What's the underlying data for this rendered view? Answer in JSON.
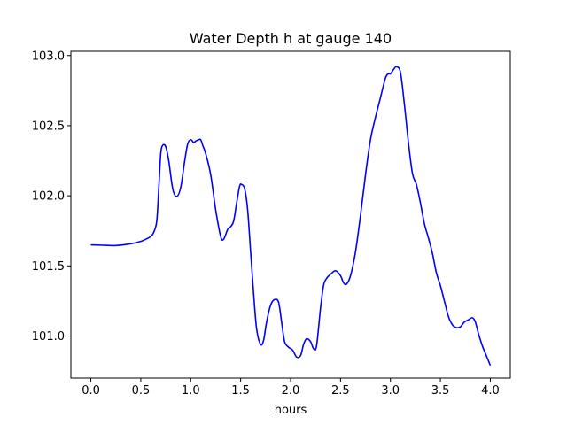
{
  "chart_data": {
    "type": "line",
    "title": "Water Depth h at gauge 140",
    "xlabel": "hours",
    "ylabel": "",
    "xlim": [
      -0.2,
      4.2
    ],
    "ylim": [
      100.7,
      103.03
    ],
    "xticks": [
      0.0,
      0.5,
      1.0,
      1.5,
      2.0,
      2.5,
      3.0,
      3.5,
      4.0
    ],
    "xtick_labels": [
      "0.0",
      "0.5",
      "1.0",
      "1.5",
      "2.0",
      "2.5",
      "3.0",
      "3.5",
      "4.0"
    ],
    "yticks": [
      101.0,
      101.5,
      102.0,
      102.5,
      103.0
    ],
    "ytick_labels": [
      "101.0",
      "101.5",
      "102.0",
      "102.5",
      "103.0"
    ],
    "grid": false,
    "series": [
      {
        "color": "#0000ff",
        "x": [
          0.0,
          0.1,
          0.25,
          0.4,
          0.5,
          0.55,
          0.6,
          0.63,
          0.66,
          0.68,
          0.7,
          0.72,
          0.75,
          0.78,
          0.82,
          0.86,
          0.9,
          0.94,
          0.97,
          1.0,
          1.03,
          1.05,
          1.08,
          1.1,
          1.12,
          1.15,
          1.2,
          1.25,
          1.3,
          1.33,
          1.37,
          1.4,
          1.43,
          1.46,
          1.49,
          1.51,
          1.54,
          1.57,
          1.6,
          1.63,
          1.66,
          1.7,
          1.73,
          1.76,
          1.8,
          1.84,
          1.88,
          1.91,
          1.94,
          1.98,
          2.02,
          2.06,
          2.1,
          2.13,
          2.16,
          2.2,
          2.23,
          2.26,
          2.3,
          2.33,
          2.36,
          2.4,
          2.45,
          2.5,
          2.53,
          2.56,
          2.6,
          2.65,
          2.7,
          2.75,
          2.8,
          2.85,
          2.9,
          2.95,
          2.98,
          3.0,
          3.03,
          3.06,
          3.1,
          3.14,
          3.18,
          3.22,
          3.26,
          3.3,
          3.34,
          3.38,
          3.42,
          3.46,
          3.5,
          3.54,
          3.58,
          3.62,
          3.66,
          3.7,
          3.74,
          3.78,
          3.82,
          3.85,
          3.88,
          3.92,
          3.96,
          4.0
        ],
        "y": [
          101.65,
          101.648,
          101.645,
          101.658,
          101.675,
          101.69,
          101.71,
          101.74,
          101.82,
          102.05,
          102.3,
          102.36,
          102.35,
          102.25,
          102.05,
          101.995,
          102.06,
          102.25,
          102.37,
          102.4,
          102.38,
          102.39,
          102.4,
          102.4,
          102.36,
          102.3,
          102.15,
          101.9,
          101.71,
          101.69,
          101.76,
          101.78,
          101.82,
          101.95,
          102.07,
          102.08,
          102.05,
          101.9,
          101.6,
          101.3,
          101.05,
          100.94,
          100.97,
          101.1,
          101.22,
          101.26,
          101.24,
          101.1,
          100.96,
          100.92,
          100.9,
          100.85,
          100.86,
          100.94,
          100.98,
          100.96,
          100.91,
          100.93,
          101.2,
          101.36,
          101.41,
          101.44,
          101.465,
          101.43,
          101.38,
          101.37,
          101.43,
          101.6,
          101.86,
          102.15,
          102.4,
          102.56,
          102.7,
          102.84,
          102.87,
          102.87,
          102.9,
          102.92,
          102.88,
          102.65,
          102.38,
          102.16,
          102.08,
          101.95,
          101.8,
          101.7,
          101.59,
          101.45,
          101.36,
          101.25,
          101.14,
          101.08,
          101.06,
          101.065,
          101.1,
          101.115,
          101.13,
          101.1,
          101.02,
          100.93,
          100.86,
          100.79
        ]
      }
    ]
  }
}
